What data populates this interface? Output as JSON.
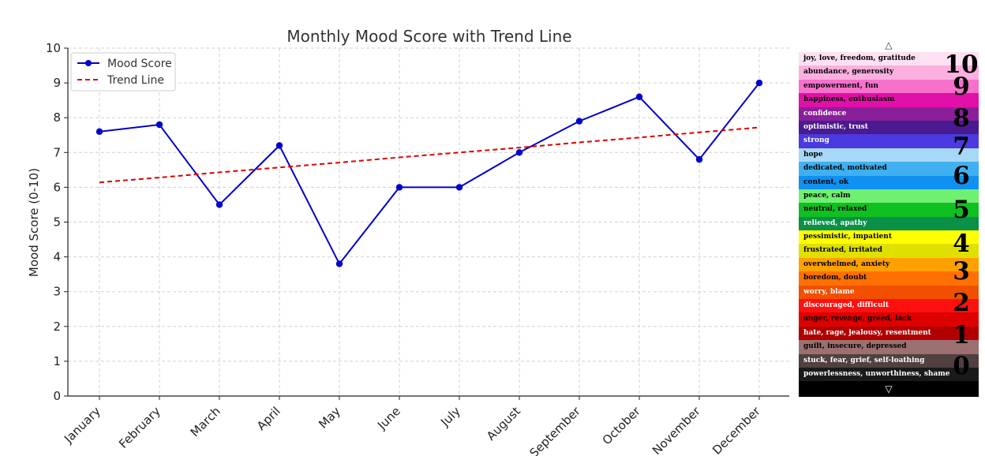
{
  "chart_data": {
    "type": "line",
    "title": "Monthly Mood Score with Trend Line",
    "ylabel": "Mood Score (0-10)",
    "xlabel": "",
    "categories": [
      "January",
      "February",
      "March",
      "April",
      "May",
      "June",
      "July",
      "August",
      "September",
      "October",
      "November",
      "December"
    ],
    "ylim": [
      0,
      10
    ],
    "yticks": [
      0,
      1,
      2,
      3,
      4,
      5,
      6,
      7,
      8,
      9,
      10
    ],
    "grid": true,
    "legend": "top-left",
    "series": [
      {
        "name": "Mood Score",
        "values": [
          7.6,
          7.8,
          5.5,
          7.2,
          3.8,
          6.0,
          6.0,
          7.0,
          7.9,
          8.6,
          6.8,
          9.0
        ],
        "color": "#0000cc",
        "style": "solid",
        "marker": "circle"
      },
      {
        "name": "Trend Line",
        "values": [
          6.14,
          6.28,
          6.43,
          6.57,
          6.71,
          6.86,
          7.0,
          7.14,
          7.29,
          7.43,
          7.58,
          7.72
        ],
        "color": "#dd0000",
        "style": "dashed",
        "marker": "none"
      }
    ]
  },
  "emotion_scale": {
    "top_arrow": "△",
    "bottom_arrow": "▽",
    "bands": [
      {
        "label": "joy, love, freedom, gratitude",
        "color": "#fde0f2",
        "text_color": "#000000"
      },
      {
        "label": "abundance, generosity",
        "color": "#fbb0e0",
        "text_color": "#000000"
      },
      {
        "label": "empowerment, fun",
        "color": "#f770cc",
        "text_color": "#000000"
      },
      {
        "label": "happiness, enthusiasm",
        "color": "#e010a8",
        "text_color": "#000000"
      },
      {
        "label": "confidence",
        "color": "#8a1f9a",
        "text_color": "#ffffff"
      },
      {
        "label": "optimistic, trust",
        "color": "#4a1a90",
        "text_color": "#ffffff"
      },
      {
        "label": "strong",
        "color": "#4a3ae0",
        "text_color": "#ffffff"
      },
      {
        "label": "hope",
        "color": "#a8d8f8",
        "text_color": "#000000"
      },
      {
        "label": "dedicated, motivated",
        "color": "#40b0f0",
        "text_color": "#000000"
      },
      {
        "label": "content, ok",
        "color": "#1090f0",
        "text_color": "#000000"
      },
      {
        "label": "peace, calm",
        "color": "#70f070",
        "text_color": "#000000"
      },
      {
        "label": "neutral, relaxed",
        "color": "#10c020",
        "text_color": "#000000"
      },
      {
        "label": "relieved, apathy",
        "color": "#0a9048",
        "text_color": "#ffffff"
      },
      {
        "label": "pessimistic, impatient",
        "color": "#ffff00",
        "text_color": "#000000"
      },
      {
        "label": "frustrated, irritated",
        "color": "#e0e000",
        "text_color": "#000000"
      },
      {
        "label": "overwhelmed, anxiety",
        "color": "#ffa000",
        "text_color": "#000000"
      },
      {
        "label": "boredom, doubt",
        "color": "#ff7000",
        "text_color": "#000000"
      },
      {
        "label": "worry, blame",
        "color": "#f05000",
        "text_color": "#ffffff"
      },
      {
        "label": "discouraged, difficult",
        "color": "#ff1010",
        "text_color": "#ffffff"
      },
      {
        "label": "anger, revenge, greed, lack",
        "color": "#dd0000",
        "text_color": "#000000"
      },
      {
        "label": "hate, rage, jealousy, resentment",
        "color": "#b00000",
        "text_color": "#ffffff"
      },
      {
        "label": "guilt, insecure, depressed",
        "color": "#9c7070",
        "text_color": "#000000"
      },
      {
        "label": "stuck, fear, grief, self-loathing",
        "color": "#504040",
        "text_color": "#ffffff"
      },
      {
        "label": "powerlessness, unworthiness, shame",
        "color": "#1a1a1a",
        "text_color": "#ffffff"
      }
    ],
    "levels": [
      {
        "num": "10",
        "band_center": 0.92
      },
      {
        "num": "9",
        "band_center": 2.5
      },
      {
        "num": "8",
        "band_center": 4.85
      },
      {
        "num": "7",
        "band_center": 6.9
      },
      {
        "num": "6",
        "band_center": 9.05
      },
      {
        "num": "5",
        "band_center": 11.5
      },
      {
        "num": "4",
        "band_center": 13.95
      },
      {
        "num": "3",
        "band_center": 16.0
      },
      {
        "num": "2",
        "band_center": 18.3
      },
      {
        "num": "1",
        "band_center": 20.65
      },
      {
        "num": "0",
        "band_center": 22.85
      }
    ]
  }
}
